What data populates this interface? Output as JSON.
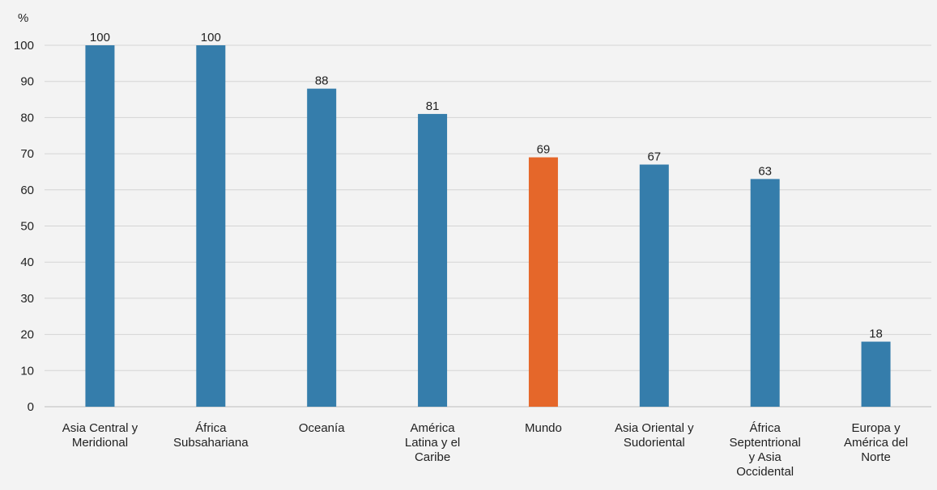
{
  "chart_data": {
    "type": "bar",
    "ylabel": "%",
    "ylim": [
      0,
      100
    ],
    "yticks": [
      0,
      10,
      20,
      30,
      40,
      50,
      60,
      70,
      80,
      90,
      100
    ],
    "grid": true,
    "categories": [
      [
        "Asia Central y",
        "Meridional"
      ],
      [
        "África",
        "Subsahariana"
      ],
      [
        "Oceanía"
      ],
      [
        "América",
        "Latina y el",
        "Caribe"
      ],
      [
        "Mundo"
      ],
      [
        "Asia Oriental y",
        "Sudoriental"
      ],
      [
        "África",
        "Septentrional",
        "y Asia",
        "Occidental"
      ],
      [
        "Europa y",
        "América del",
        "Norte"
      ]
    ],
    "values": [
      100,
      100,
      88,
      81,
      69,
      67,
      63,
      18
    ],
    "value_labels": [
      "100",
      "100",
      "88",
      "81",
      "69",
      "67",
      "63",
      "18"
    ],
    "bar_colors": [
      "#357dab",
      "#357dab",
      "#357dab",
      "#357dab",
      "#e5672a",
      "#357dab",
      "#357dab",
      "#357dab"
    ]
  }
}
